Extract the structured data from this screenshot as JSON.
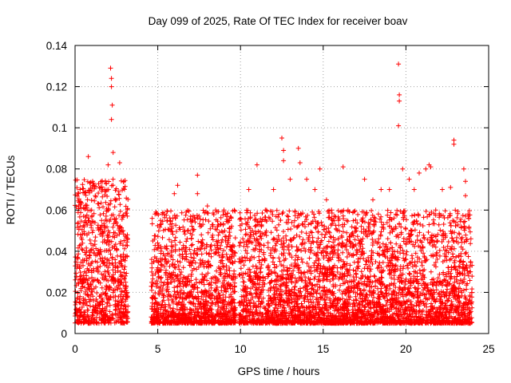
{
  "chart_data": {
    "type": "scatter",
    "title": "Day 099 of 2025, Rate Of TEC Index for receiver boav",
    "xlabel": "GPS time / hours",
    "ylabel": "ROTI / TECUs",
    "xlim": [
      0,
      25
    ],
    "ylim": [
      0,
      0.14
    ],
    "x_ticks": [
      0,
      5,
      10,
      15,
      20,
      25
    ],
    "y_ticks": [
      0,
      0.02,
      0.04,
      0.06,
      0.08,
      0.1,
      0.12,
      0.14
    ],
    "x_tick_labels": [
      "0",
      "5",
      "10",
      "15",
      "20",
      "25"
    ],
    "y_tick_labels": [
      "0",
      "0.02",
      "0.04",
      "0.06",
      "0.08",
      "0.1",
      "0.12",
      "0.14"
    ],
    "grid": true,
    "marker": "plus",
    "series": [
      {
        "color": "#ff0000",
        "points": [
          [
            0.1,
            0.012
          ],
          [
            0.3,
            0.018
          ],
          [
            0.5,
            0.025
          ],
          [
            0.7,
            0.04
          ],
          [
            0.8,
            0.086
          ],
          [
            1.0,
            0.06
          ],
          [
            1.2,
            0.045
          ],
          [
            1.4,
            0.03
          ],
          [
            1.6,
            0.055
          ],
          [
            1.8,
            0.07
          ],
          [
            2.0,
            0.082
          ],
          [
            2.15,
            0.129
          ],
          [
            2.2,
            0.124
          ],
          [
            2.2,
            0.12
          ],
          [
            2.25,
            0.111
          ],
          [
            2.2,
            0.104
          ],
          [
            2.3,
            0.088
          ],
          [
            2.5,
            0.065
          ],
          [
            2.7,
            0.083
          ],
          [
            2.9,
            0.05
          ],
          [
            3.0,
            0.02
          ],
          [
            4.7,
            0.045
          ],
          [
            5.0,
            0.03
          ],
          [
            5.5,
            0.035
          ],
          [
            6.0,
            0.068
          ],
          [
            6.2,
            0.072
          ],
          [
            6.8,
            0.05
          ],
          [
            7.4,
            0.077
          ],
          [
            7.4,
            0.068
          ],
          [
            8.0,
            0.062
          ],
          [
            8.5,
            0.06
          ],
          [
            9.0,
            0.06
          ],
          [
            9.5,
            0.04
          ],
          [
            10.0,
            0.035
          ],
          [
            10.5,
            0.07
          ],
          [
            11.0,
            0.082
          ],
          [
            11.5,
            0.06
          ],
          [
            12.0,
            0.07
          ],
          [
            12.5,
            0.095
          ],
          [
            12.6,
            0.089
          ],
          [
            12.6,
            0.084
          ],
          [
            13.0,
            0.075
          ],
          [
            13.5,
            0.09
          ],
          [
            13.6,
            0.083
          ],
          [
            14.0,
            0.075
          ],
          [
            14.5,
            0.07
          ],
          [
            14.8,
            0.08
          ],
          [
            15.2,
            0.065
          ],
          [
            15.5,
            0.06
          ],
          [
            16.2,
            0.081
          ],
          [
            16.5,
            0.06
          ],
          [
            17.0,
            0.05
          ],
          [
            17.5,
            0.075
          ],
          [
            18.0,
            0.065
          ],
          [
            18.5,
            0.07
          ],
          [
            19.0,
            0.07
          ],
          [
            19.55,
            0.131
          ],
          [
            19.6,
            0.116
          ],
          [
            19.6,
            0.113
          ],
          [
            19.55,
            0.101
          ],
          [
            19.8,
            0.08
          ],
          [
            20.2,
            0.075
          ],
          [
            20.5,
            0.07
          ],
          [
            20.8,
            0.078
          ],
          [
            21.2,
            0.08
          ],
          [
            21.4,
            0.082
          ],
          [
            21.5,
            0.081
          ],
          [
            21.8,
            0.06
          ],
          [
            22.2,
            0.07
          ],
          [
            22.7,
            0.071
          ],
          [
            22.9,
            0.094
          ],
          [
            22.9,
            0.092
          ],
          [
            23.5,
            0.08
          ],
          [
            23.6,
            0.074
          ],
          [
            23.6,
            0.067
          ],
          [
            23.8,
            0.056
          ],
          [
            23.9,
            0.03
          ]
        ]
      }
    ]
  }
}
